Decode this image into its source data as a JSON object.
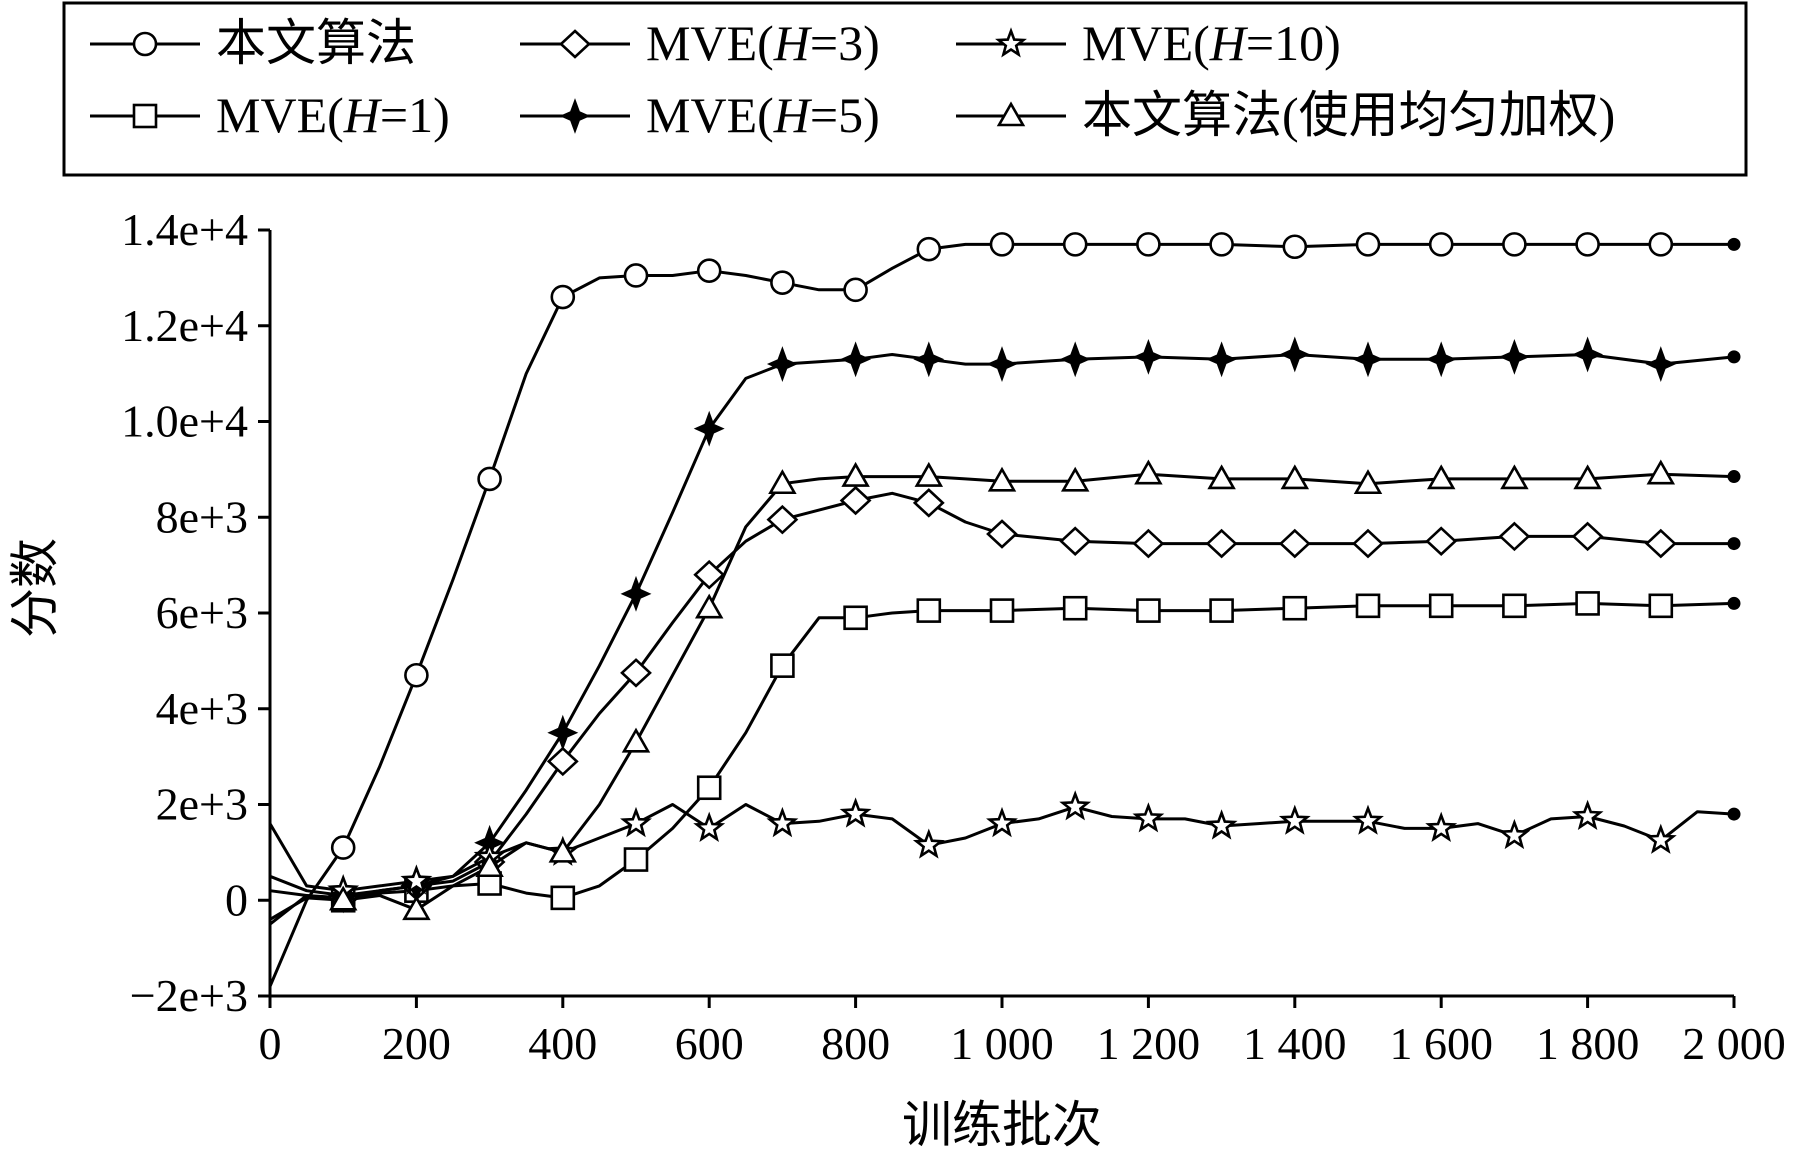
{
  "chart_data": {
    "type": "line",
    "title": "",
    "xlabel": "训练批次",
    "ylabel": "分数",
    "xlim": [
      0,
      2000
    ],
    "ylim": [
      -2000,
      14000
    ],
    "x_ticks": [
      {
        "value": 0,
        "label": "0"
      },
      {
        "value": 200,
        "label": "200"
      },
      {
        "value": 400,
        "label": "400"
      },
      {
        "value": 600,
        "label": "600"
      },
      {
        "value": 800,
        "label": "800"
      },
      {
        "value": 1000,
        "label": "1 000"
      },
      {
        "value": 1200,
        "label": "1 200"
      },
      {
        "value": 1400,
        "label": "1 400"
      },
      {
        "value": 1600,
        "label": "1 600"
      },
      {
        "value": 1800,
        "label": "1 800"
      },
      {
        "value": 2000,
        "label": "2 000"
      }
    ],
    "y_ticks": [
      {
        "value": -2000,
        "label": "−2e+3"
      },
      {
        "value": 0,
        "label": "0"
      },
      {
        "value": 2000,
        "label": "2e+3"
      },
      {
        "value": 4000,
        "label": "4e+3"
      },
      {
        "value": 6000,
        "label": "6e+3"
      },
      {
        "value": 8000,
        "label": "8e+3"
      },
      {
        "value": 10000,
        "label": "1.0e+4"
      },
      {
        "value": 12000,
        "label": "1.2e+4"
      },
      {
        "value": 14000,
        "label": "1.4e+4"
      }
    ],
    "grid": false,
    "legend_position": "top",
    "series": [
      {
        "name": "本文算法",
        "name_parts": [
          "本文算法"
        ],
        "marker": "circle",
        "x": [
          0,
          50,
          100,
          150,
          200,
          250,
          300,
          350,
          400,
          450,
          500,
          550,
          600,
          650,
          700,
          750,
          800,
          850,
          900,
          950,
          1000,
          1100,
          1200,
          1300,
          1400,
          1500,
          1600,
          1700,
          1800,
          1900,
          2000
        ],
        "y": [
          -1800,
          0,
          1100,
          2800,
          4700,
          6700,
          8800,
          11000,
          12600,
          13000,
          13050,
          13050,
          13150,
          13050,
          12900,
          12750,
          12750,
          13200,
          13600,
          13700,
          13700,
          13700,
          13700,
          13700,
          13650,
          13700,
          13700,
          13700,
          13700,
          13700,
          13700
        ]
      },
      {
        "name": "MVE(H=1)",
        "name_parts": [
          "MVE(",
          "H",
          "=1)"
        ],
        "marker": "square",
        "x": [
          0,
          50,
          100,
          150,
          200,
          250,
          300,
          350,
          400,
          450,
          500,
          550,
          600,
          650,
          700,
          750,
          800,
          850,
          900,
          950,
          1000,
          1100,
          1200,
          1300,
          1400,
          1500,
          1600,
          1700,
          1800,
          1900,
          2000
        ],
        "y": [
          -400,
          50,
          0,
          150,
          200,
          300,
          350,
          150,
          50,
          300,
          850,
          1500,
          2350,
          3500,
          4900,
          5900,
          5900,
          6000,
          6050,
          6050,
          6050,
          6100,
          6050,
          6050,
          6100,
          6150,
          6150,
          6150,
          6200,
          6150,
          6200
        ]
      },
      {
        "name": "MVE(H=3)",
        "name_parts": [
          "MVE(",
          "H",
          "=3)"
        ],
        "marker": "diamond",
        "x": [
          0,
          50,
          100,
          150,
          200,
          250,
          300,
          350,
          400,
          450,
          500,
          550,
          600,
          650,
          700,
          750,
          800,
          850,
          900,
          950,
          1000,
          1100,
          1200,
          1300,
          1400,
          1500,
          1600,
          1700,
          1800,
          1900,
          2000
        ],
        "y": [
          200,
          100,
          50,
          200,
          300,
          400,
          800,
          1800,
          2900,
          3900,
          4750,
          5800,
          6800,
          7500,
          7950,
          8150,
          8350,
          8500,
          8300,
          7900,
          7650,
          7500,
          7450,
          7450,
          7450,
          7450,
          7500,
          7600,
          7600,
          7450,
          7450
        ]
      },
      {
        "name": "MVE(H=5)",
        "name_parts": [
          "MVE(",
          "H",
          "=5)"
        ],
        "marker": "plus",
        "x": [
          0,
          50,
          100,
          150,
          200,
          250,
          300,
          350,
          400,
          450,
          500,
          550,
          600,
          650,
          700,
          750,
          800,
          850,
          900,
          950,
          1000,
          1100,
          1200,
          1300,
          1400,
          1500,
          1600,
          1700,
          1800,
          1900,
          2000
        ],
        "y": [
          500,
          200,
          100,
          200,
          300,
          500,
          1200,
          2300,
          3500,
          4900,
          6400,
          8100,
          9850,
          10900,
          11200,
          11250,
          11300,
          11400,
          11300,
          11200,
          11200,
          11300,
          11350,
          11300,
          11400,
          11300,
          11300,
          11350,
          11400,
          11200,
          11350
        ]
      },
      {
        "name": "MVE(H=10)",
        "name_parts": [
          "MVE(",
          "H",
          "=10)"
        ],
        "marker": "star",
        "x": [
          0,
          50,
          100,
          150,
          200,
          250,
          300,
          350,
          400,
          450,
          500,
          550,
          600,
          650,
          700,
          750,
          800,
          850,
          900,
          950,
          1000,
          1050,
          1100,
          1150,
          1200,
          1250,
          1300,
          1350,
          1400,
          1450,
          1500,
          1550,
          1600,
          1650,
          1700,
          1750,
          1800,
          1850,
          1900,
          1950,
          2000
        ],
        "y": [
          1600,
          300,
          200,
          300,
          400,
          500,
          900,
          1200,
          1000,
          1300,
          1600,
          2000,
          1500,
          2000,
          1600,
          1650,
          1800,
          1700,
          1150,
          1300,
          1600,
          1700,
          1950,
          1750,
          1700,
          1700,
          1550,
          1600,
          1650,
          1650,
          1650,
          1500,
          1500,
          1600,
          1350,
          1700,
          1750,
          1550,
          1250,
          1850,
          1800
        ]
      },
      {
        "name": "本文算法(使用均匀加权)",
        "name_parts": [
          "本文算法(使用均匀加权)"
        ],
        "marker": "triangle",
        "x": [
          0,
          50,
          100,
          150,
          200,
          250,
          300,
          350,
          400,
          450,
          500,
          550,
          600,
          650,
          700,
          750,
          800,
          850,
          900,
          950,
          1000,
          1100,
          1200,
          1300,
          1400,
          1500,
          1600,
          1700,
          1800,
          1900,
          2000
        ],
        "y": [
          -500,
          100,
          0,
          100,
          -200,
          300,
          700,
          1200,
          1000,
          2000,
          3300,
          4700,
          6100,
          7800,
          8700,
          8800,
          8850,
          8850,
          8850,
          8800,
          8750,
          8750,
          8900,
          8800,
          8800,
          8700,
          8800,
          8800,
          8800,
          8900,
          8850
        ]
      }
    ]
  }
}
